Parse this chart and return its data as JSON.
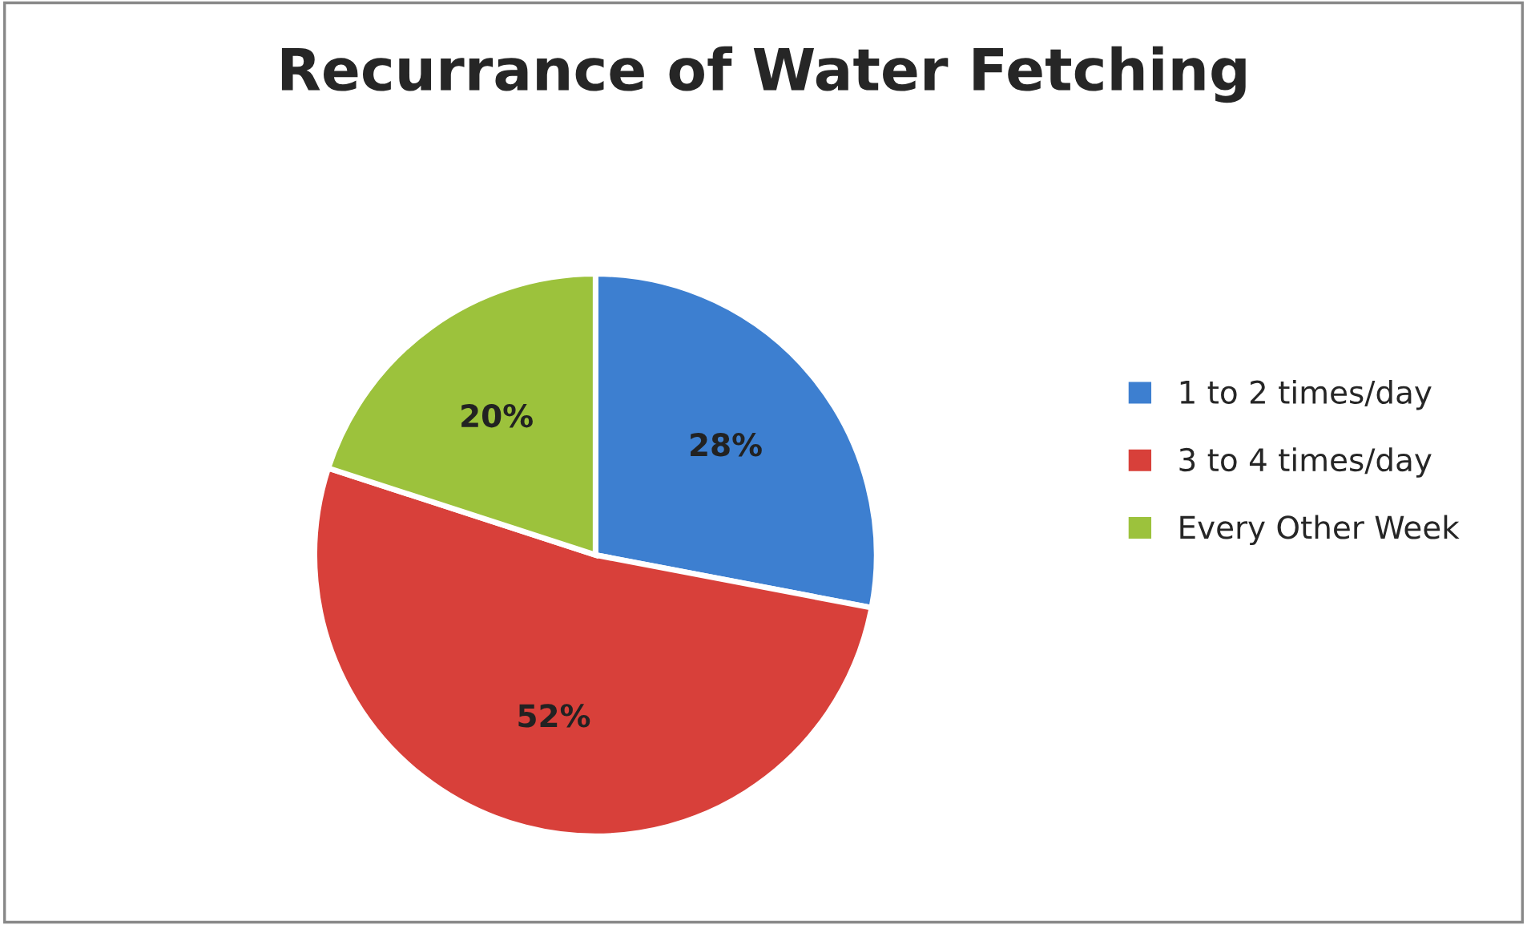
{
  "chart_data": {
    "type": "pie",
    "title": "Recurrance of Water Fetching",
    "categories": [
      "1 to 2 times/day",
      "3 to 4 times/day",
      "Every Other Week"
    ],
    "values": [
      28,
      52,
      20
    ],
    "colors": [
      "#3d7fd0",
      "#d8403a",
      "#9cc23c"
    ],
    "value_labels": [
      "28%",
      "52%",
      "20%"
    ],
    "legend": "right"
  }
}
